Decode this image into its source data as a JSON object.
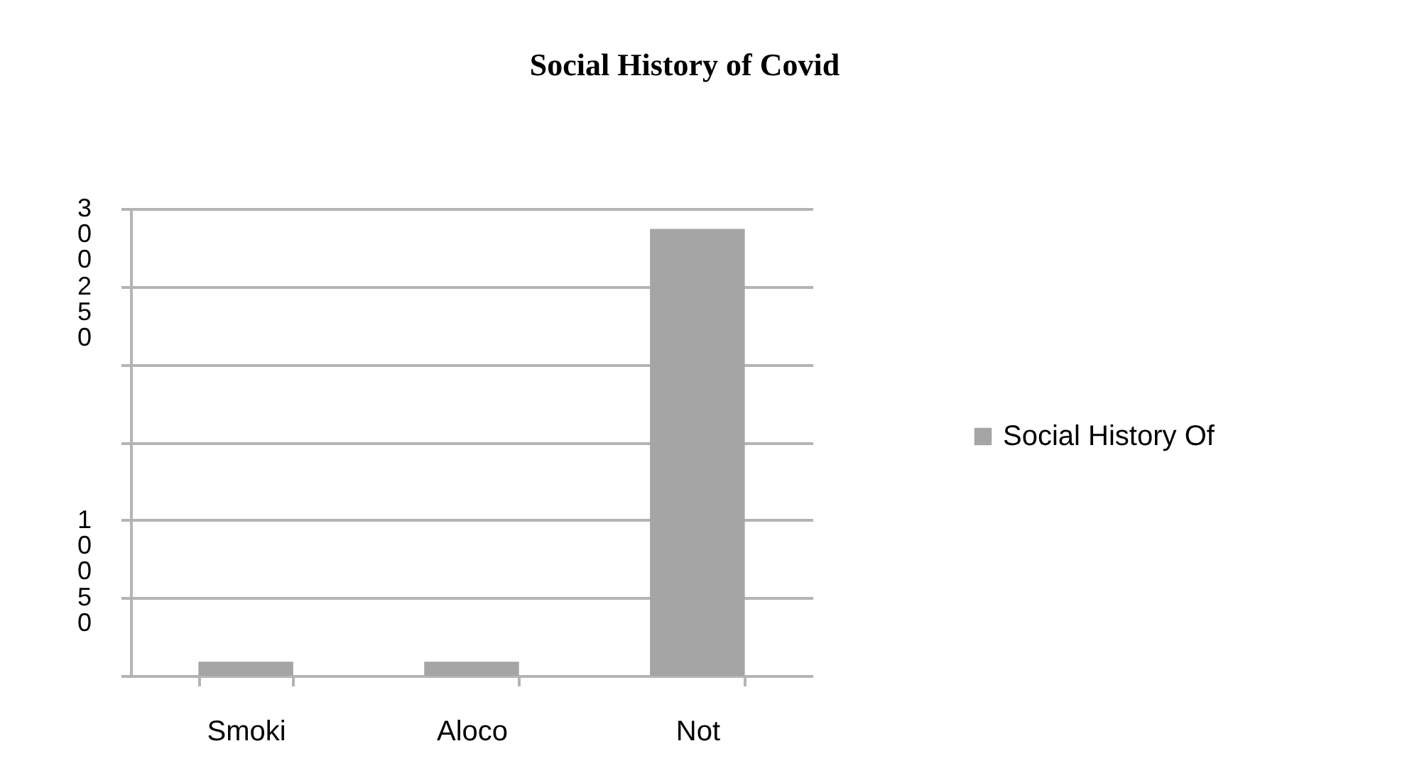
{
  "chart_data": {
    "type": "bar",
    "title": "Social History of Covid",
    "categories": [
      "Smoki",
      "Aloco",
      "Not"
    ],
    "series": [
      {
        "name": "Social History Of",
        "color": "#a5a5a5",
        "values": [
          9,
          9,
          287
        ]
      }
    ],
    "ylim": [
      0,
      300
    ],
    "yticks": [
      {
        "value": 300,
        "label": "300"
      },
      {
        "value": 250,
        "label": "250"
      },
      {
        "value": 200,
        "label": null
      },
      {
        "value": 150,
        "label": null
      },
      {
        "value": 100,
        "label": "100"
      },
      {
        "value": 50,
        "label": "50"
      },
      {
        "value": 0,
        "label": null
      }
    ],
    "grid": true,
    "legend": "right"
  }
}
